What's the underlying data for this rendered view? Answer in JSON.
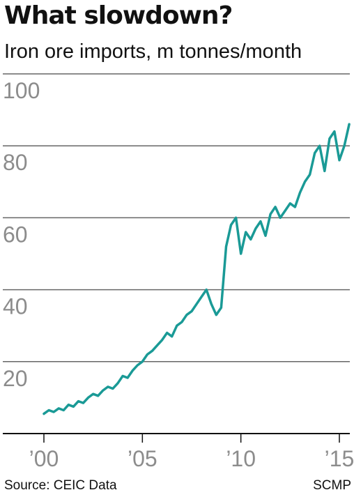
{
  "title": "What slowdown?",
  "subtitle": "Iron ore imports, m tonnes/month",
  "source": "Source: CEIC Data",
  "credit": "SCMP",
  "colors": {
    "line": "#1a9a96",
    "grid": "#666666",
    "axis": "#111111",
    "tick_text": "#8c8c8c"
  },
  "chart_data": {
    "type": "line",
    "title": "What slowdown?",
    "subtitle": "Iron ore imports, m tonnes/month",
    "xlabel": "",
    "ylabel": "",
    "xlim": [
      2000,
      2015.6
    ],
    "ylim": [
      0,
      100
    ],
    "grid": true,
    "y_ticks": [
      20,
      40,
      60,
      80,
      100
    ],
    "y_tick_labels": [
      "20",
      "40",
      "60",
      "80",
      "100"
    ],
    "x_ticks": [
      2000,
      2005,
      2010,
      2015
    ],
    "x_tick_labels": [
      "’00",
      "’05",
      "’10",
      "’15"
    ],
    "series": [
      {
        "x": [
          2000.0,
          2000.25,
          2000.5,
          2000.75,
          2001.0,
          2001.25,
          2001.5,
          2001.75,
          2002.0,
          2002.25,
          2002.5,
          2002.75,
          2003.0,
          2003.25,
          2003.5,
          2003.75,
          2004.0,
          2004.25,
          2004.5,
          2004.75,
          2005.0,
          2005.25,
          2005.5,
          2005.75,
          2006.0,
          2006.25,
          2006.5,
          2006.75,
          2007.0,
          2007.25,
          2007.5,
          2007.75,
          2008.0,
          2008.25,
          2008.5,
          2008.75,
          2009.0,
          2009.25,
          2009.5,
          2009.75,
          2010.0,
          2010.25,
          2010.5,
          2010.75,
          2011.0,
          2011.25,
          2011.5,
          2011.75,
          2012.0,
          2012.25,
          2012.5,
          2012.75,
          2013.0,
          2013.25,
          2013.5,
          2013.75,
          2014.0,
          2014.25,
          2014.5,
          2014.75,
          2015.0,
          2015.25,
          2015.5
        ],
        "values": [
          5.5,
          6.5,
          6.0,
          7.0,
          6.5,
          8.0,
          7.5,
          9.0,
          8.5,
          10.0,
          11.0,
          10.5,
          12.0,
          13.0,
          12.5,
          14.0,
          16.0,
          15.5,
          17.5,
          19.0,
          20.0,
          22.0,
          23.0,
          24.5,
          26.0,
          28.0,
          27.0,
          30.0,
          31.0,
          33.0,
          34.0,
          36.0,
          38.0,
          40.0,
          36.0,
          33.0,
          35.0,
          52.0,
          58.0,
          60.0,
          50.0,
          56.0,
          54.0,
          57.0,
          59.0,
          55.0,
          61.0,
          63.0,
          60.0,
          62.0,
          64.0,
          63.0,
          67.0,
          70.0,
          72.0,
          78.0,
          80.0,
          73.0,
          82.0,
          84.0,
          76.0,
          80.0,
          86.0
        ]
      }
    ],
    "y_at_last_tick": 86.0
  }
}
